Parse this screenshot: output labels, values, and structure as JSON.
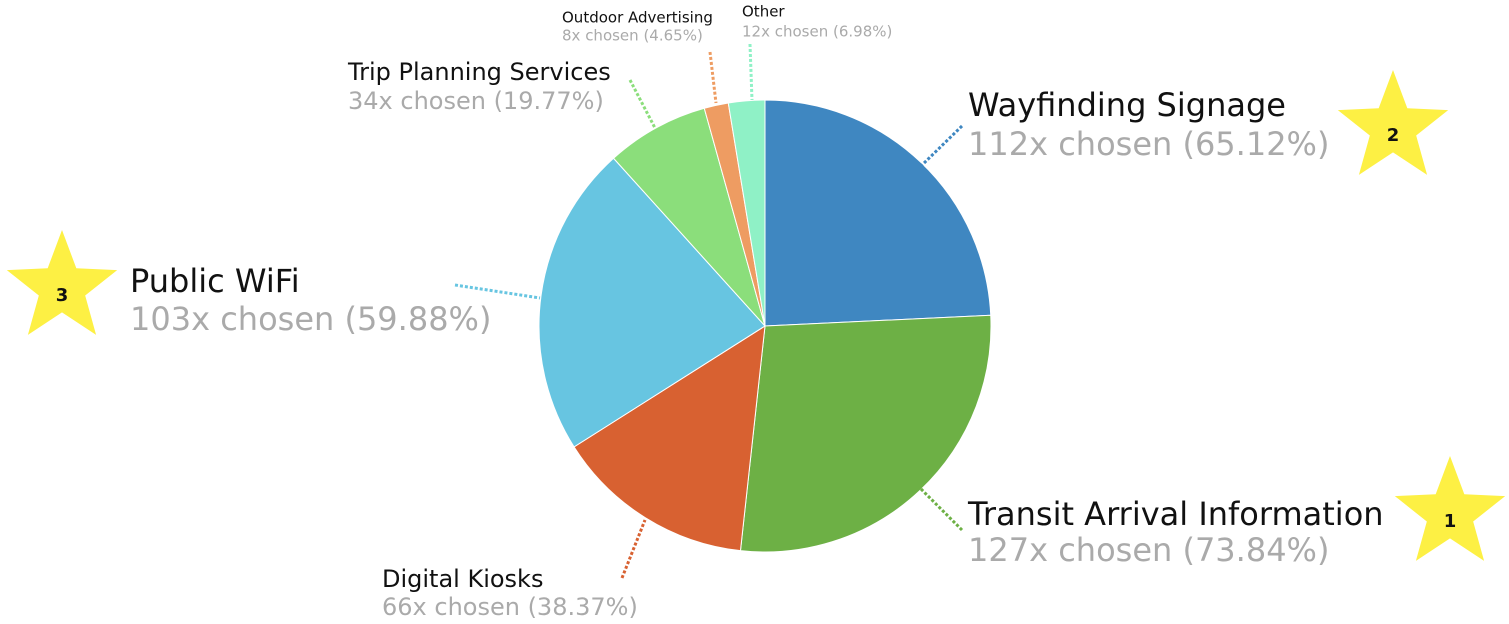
{
  "chart_data": {
    "type": "pie",
    "categories": [
      "Wayfinding Signage",
      "Transit Arrival Information",
      "Digital Kiosks",
      "Public WiFi",
      "Trip Planning Services",
      "Outdoor Advertising",
      "Other"
    ],
    "values": [
      112,
      127,
      66,
      103,
      34,
      8,
      12
    ],
    "value_labels": [
      "112x chosen (65.12%)",
      "127x chosen (73.84%)",
      "66x chosen (38.37%)",
      "103x chosen (59.88%)",
      "34x chosen (19.77%)",
      "8x chosen (4.65%)",
      "12x chosen (6.98%)"
    ],
    "colors": [
      "#3f87c1",
      "#6db045",
      "#d86131",
      "#67c5e1",
      "#8bde7b",
      "#ee9c62",
      "#8ff1c6"
    ],
    "annotations": [
      "1",
      "2",
      "3"
    ]
  }
}
